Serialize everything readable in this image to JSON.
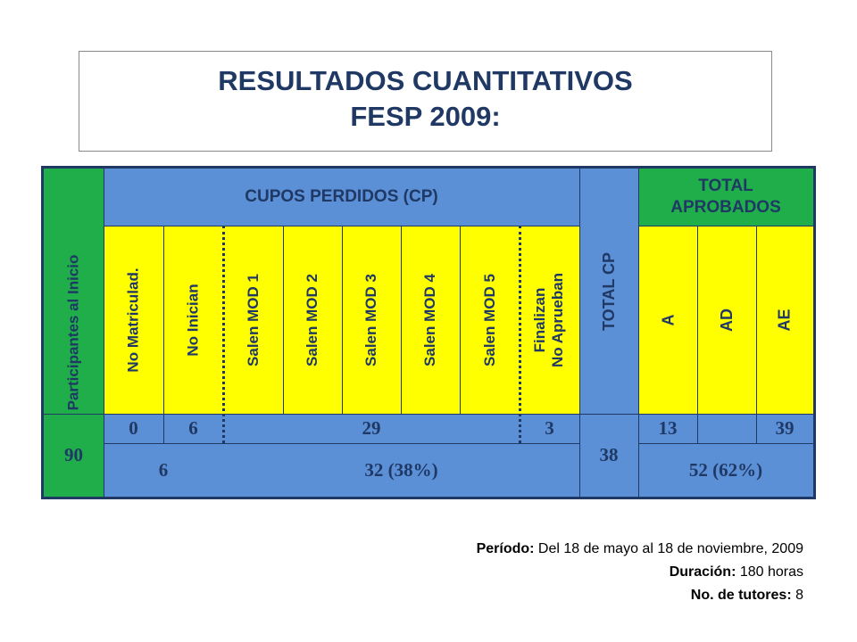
{
  "title": {
    "line1": "RESULTADOS CUANTITATIVOS",
    "line2": "FESP 2009:"
  },
  "table": {
    "participants_header": "Participantes al Inicio",
    "cp_header": "CUPOS PERDIDOS (CP)",
    "total_cp_header": "TOTAL  CP",
    "approved_header_line1": "TOTAL",
    "approved_header_line2": "APROBADOS",
    "sub_headers": {
      "no_matriculad": "No Matriculad.",
      "no_inician": "No Inician",
      "mod1": "Salen MOD 1",
      "mod2": "Salen MOD 2",
      "mod3": "Salen MOD 3",
      "mod4": "Salen MOD 4",
      "mod5": "Salen MOD 5",
      "finalizan_line1": "Finalizan",
      "finalizan_line2": "No Aprueban",
      "a": "A",
      "ad": "AD",
      "ae": "AE"
    },
    "values": {
      "participants": "90",
      "no_matriculad": "0",
      "no_inician": "6",
      "salen_mods": "29",
      "finalizan_no_aprueban": "3",
      "total_cp": "38",
      "a": "13",
      "ad": "",
      "ae": "39",
      "subtotal_initial": "6",
      "subtotal_cp": "32  (38%)",
      "subtotal_approved": "52  (62%)"
    }
  },
  "footer": {
    "period_label": "Período:",
    "period_value": " Del 18 de mayo al 18 de noviembre, 2009",
    "duration_label": "Duración:",
    "duration_value": " 180 horas",
    "tutors_label": "No. de tutores:",
    "tutors_value": " 8"
  },
  "colors": {
    "navy": "#1f3864",
    "green": "#1fae4a",
    "blue": "#5b8fd6",
    "yellow": "#ffff00"
  }
}
